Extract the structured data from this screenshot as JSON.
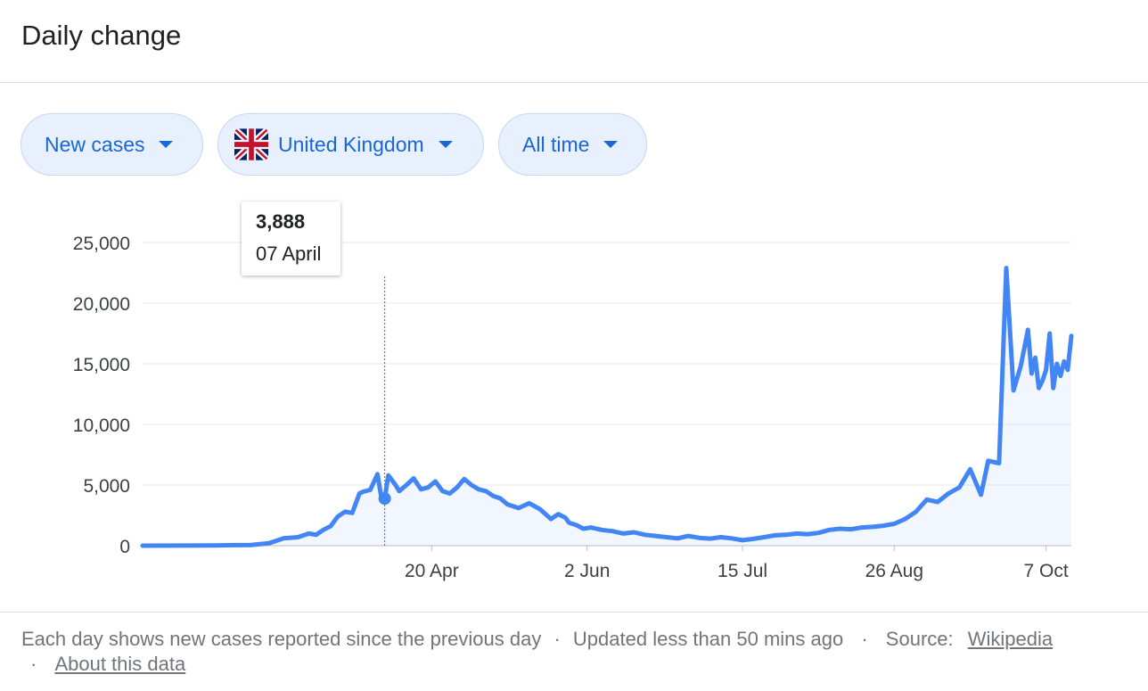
{
  "header": {
    "title": "Daily change"
  },
  "filters": {
    "metric": "New cases",
    "region": "United Kingdom",
    "range": "All time"
  },
  "tooltip": {
    "value": "3,888",
    "date": "07 April"
  },
  "footer": {
    "description": "Each day shows new cases reported since the previous day",
    "sep1": "·",
    "updated": "Updated less than 50 mins ago",
    "sep2": "·",
    "source_label": "Source:",
    "source_link": "Wikipedia",
    "sep3": "·",
    "about_link": "About this data"
  },
  "colors": {
    "line": "#4285f4",
    "accent": "#1967d2",
    "chip_bg": "#e8f0fe"
  },
  "chart_data": {
    "type": "line",
    "title": "",
    "xlabel": "",
    "ylabel": "",
    "ylim": [
      0,
      25000
    ],
    "yticks": [
      0,
      5000,
      10000,
      15000,
      20000,
      25000
    ],
    "ytick_labels": [
      "0",
      "5,000",
      "10,000",
      "15,000",
      "20,000",
      "25,000"
    ],
    "xlim": [
      "2020-01-31",
      "2020-10-14"
    ],
    "xticks": [
      "2020-04-20",
      "2020-06-02",
      "2020-07-15",
      "2020-08-26",
      "2020-10-07"
    ],
    "xtick_labels": [
      "20 Apr",
      "2 Jun",
      "15 Jul",
      "26 Aug",
      "7 Oct"
    ],
    "grid": true,
    "highlight": {
      "x": "2020-04-07",
      "y": 3888
    },
    "series": [
      {
        "x": [
          "2020-01-31",
          "2020-02-20",
          "2020-03-01",
          "2020-03-06",
          "2020-03-10",
          "2020-03-14",
          "2020-03-17",
          "2020-03-19",
          "2020-03-21",
          "2020-03-23",
          "2020-03-25",
          "2020-03-27",
          "2020-03-29",
          "2020-03-31",
          "2020-04-01",
          "2020-04-03",
          "2020-04-05",
          "2020-04-06",
          "2020-04-07",
          "2020-04-08",
          "2020-04-10",
          "2020-04-11",
          "2020-04-13",
          "2020-04-15",
          "2020-04-17",
          "2020-04-19",
          "2020-04-21",
          "2020-04-23",
          "2020-04-25",
          "2020-04-27",
          "2020-04-29",
          "2020-05-01",
          "2020-05-03",
          "2020-05-05",
          "2020-05-07",
          "2020-05-09",
          "2020-05-11",
          "2020-05-14",
          "2020-05-17",
          "2020-05-20",
          "2020-05-23",
          "2020-05-25",
          "2020-05-27",
          "2020-05-28",
          "2020-05-30",
          "2020-06-01",
          "2020-06-03",
          "2020-06-06",
          "2020-06-09",
          "2020-06-12",
          "2020-06-15",
          "2020-06-18",
          "2020-06-21",
          "2020-06-24",
          "2020-06-27",
          "2020-06-30",
          "2020-07-03",
          "2020-07-06",
          "2020-07-09",
          "2020-07-12",
          "2020-07-15",
          "2020-07-18",
          "2020-07-21",
          "2020-07-24",
          "2020-07-27",
          "2020-07-30",
          "2020-08-02",
          "2020-08-05",
          "2020-08-08",
          "2020-08-11",
          "2020-08-14",
          "2020-08-17",
          "2020-08-20",
          "2020-08-23",
          "2020-08-26",
          "2020-08-29",
          "2020-09-01",
          "2020-09-04",
          "2020-09-07",
          "2020-09-10",
          "2020-09-13",
          "2020-09-16",
          "2020-09-19",
          "2020-09-21",
          "2020-09-24",
          "2020-09-26",
          "2020-09-28",
          "2020-09-30",
          "2020-10-02",
          "2020-10-03",
          "2020-10-04",
          "2020-10-05",
          "2020-10-06",
          "2020-10-07",
          "2020-10-08",
          "2020-10-09",
          "2020-10-10",
          "2020-10-11",
          "2020-10-12",
          "2020-10-13",
          "2020-10-14"
        ],
        "y": [
          0,
          20,
          60,
          200,
          600,
          700,
          1000,
          900,
          1300,
          1600,
          2400,
          2800,
          2700,
          4300,
          4450,
          4600,
          5900,
          4100,
          3888,
          5800,
          5000,
          4500,
          5000,
          5550,
          4650,
          4800,
          5300,
          4500,
          4300,
          4800,
          5500,
          5000,
          4650,
          4500,
          4100,
          3900,
          3400,
          3100,
          3500,
          3000,
          2200,
          2600,
          2300,
          1900,
          1700,
          1400,
          1500,
          1300,
          1200,
          1000,
          1100,
          900,
          800,
          700,
          600,
          800,
          650,
          580,
          700,
          600,
          450,
          560,
          700,
          850,
          900,
          1000,
          950,
          1050,
          1300,
          1400,
          1350,
          1500,
          1550,
          1650,
          1800,
          2200,
          2800,
          3800,
          3600,
          4300,
          4800,
          6300,
          4200,
          7000,
          6800,
          22900,
          12800,
          14800,
          17800,
          14200,
          15500,
          13000,
          13600,
          14500,
          17500,
          13000,
          15000,
          14000,
          15200,
          14500,
          17300
        ]
      }
    ]
  }
}
